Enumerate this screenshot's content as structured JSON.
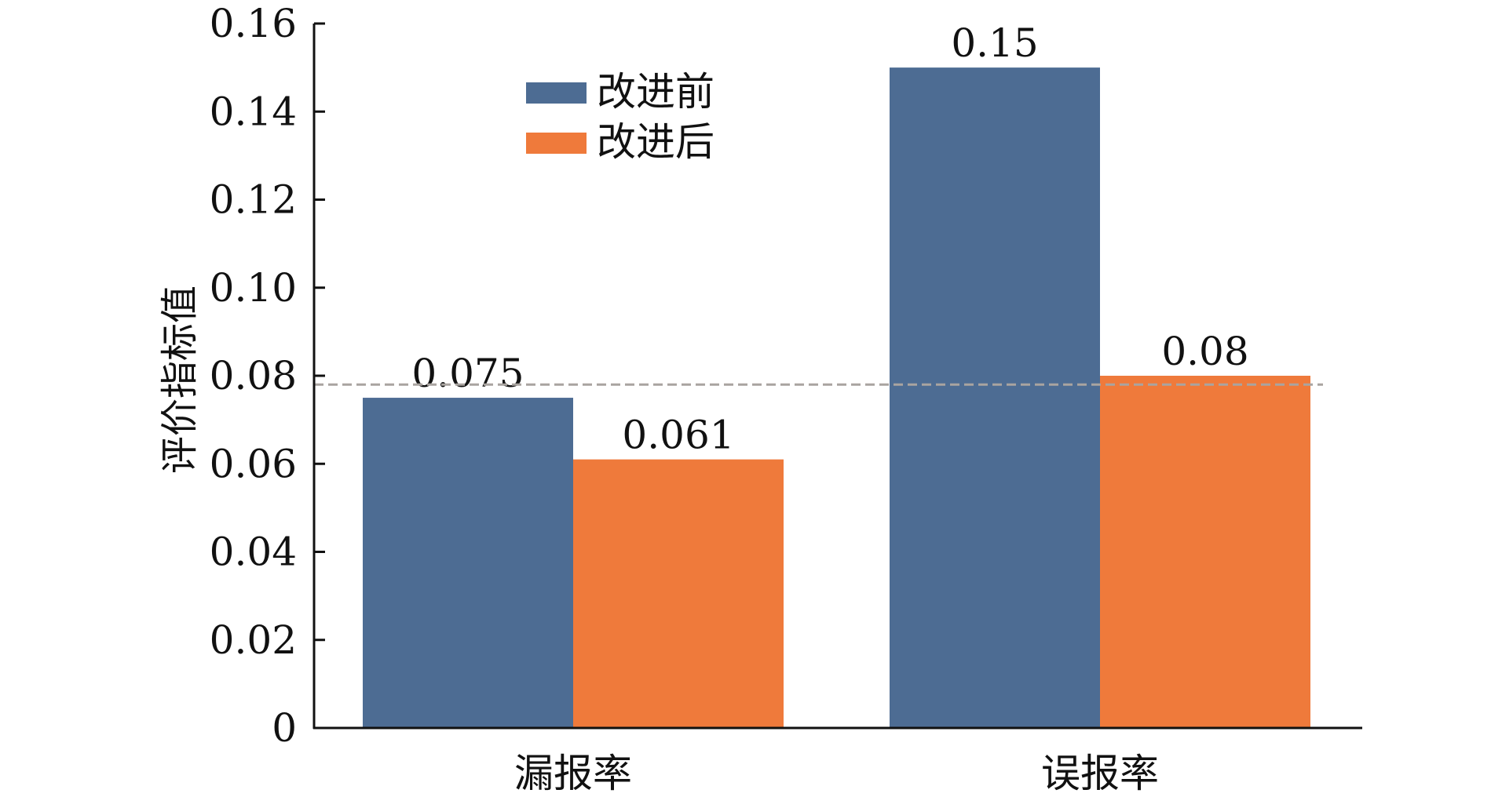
{
  "chart_data": {
    "type": "bar",
    "categories": [
      "漏报率",
      "误报率"
    ],
    "series": [
      {
        "name": "改进前",
        "values": [
          0.075,
          0.15
        ],
        "color": "#4d6c93",
        "labels": [
          "0.075",
          "0.15"
        ]
      },
      {
        "name": "改进后",
        "values": [
          0.061,
          0.08
        ],
        "color": "#ef7a3b",
        "labels": [
          "0.061",
          "0.08"
        ]
      }
    ],
    "ylabel": "评价指标值",
    "ylim": [
      0,
      0.16
    ],
    "yticks": [
      0,
      0.02,
      0.04,
      0.06,
      0.08,
      0.1,
      0.12,
      0.14,
      0.16
    ],
    "ytick_labels": [
      "0",
      "0.02",
      "0.04",
      "0.06",
      "0.08",
      "0.10",
      "0.12",
      "0.14",
      "0.16"
    ],
    "reference_line": {
      "y": 0.078,
      "color": "#a9a4a0",
      "style": "dashed"
    },
    "legend_position": "top-left-center",
    "grid": false
  }
}
